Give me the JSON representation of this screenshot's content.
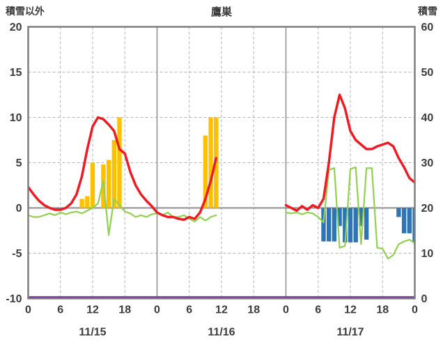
{
  "chart_data": {
    "type": "line",
    "title": "鷹巣",
    "left_axis_title": "積雪以外",
    "right_axis_title": "積雪",
    "left_axis": {
      "min": -10,
      "max": 20,
      "ticks": [
        20,
        15,
        10,
        5,
        0,
        -5,
        -10
      ],
      "gridlines": [
        15,
        10,
        5,
        -5
      ]
    },
    "right_axis": {
      "min": 0,
      "max": 60,
      "ticks": [
        60,
        50,
        40,
        30,
        20,
        10,
        0
      ]
    },
    "x_axis": {
      "hours_total": 72,
      "tick_step": 6,
      "tick_labels": [
        "0",
        "6",
        "12",
        "18",
        "0",
        "6",
        "12",
        "18",
        "0",
        "6",
        "12",
        "18",
        "0"
      ],
      "day_labels": [
        "11/15",
        "11/16",
        "11/17"
      ]
    },
    "grid": {
      "dash_color": "#b3b3b3",
      "solid_color": "#8c8c8c",
      "frame_color": "#7f7f7f",
      "zero_line_color": "#8c8c8c"
    },
    "series": [
      {
        "name": "orange-bars",
        "type": "bar",
        "axis": "left",
        "color": "#ffc000",
        "points": [
          [
            10,
            1
          ],
          [
            11,
            1.3
          ],
          [
            12,
            5
          ],
          [
            14,
            4.8
          ],
          [
            15,
            5.3
          ],
          [
            16,
            7.5
          ],
          [
            17,
            10
          ],
          [
            33,
            8
          ],
          [
            34,
            10
          ],
          [
            35,
            10
          ]
        ]
      },
      {
        "name": "blue-bars",
        "type": "bar",
        "axis": "left",
        "color": "#2e75b6",
        "points": [
          [
            55,
            -3.7
          ],
          [
            56,
            -3.7
          ],
          [
            57,
            -3.7
          ],
          [
            58,
            -2
          ],
          [
            59,
            -3.8
          ],
          [
            60,
            -3.8
          ],
          [
            61,
            -3.8
          ],
          [
            62,
            -2
          ],
          [
            63,
            -3.5
          ],
          [
            69,
            -1
          ],
          [
            70,
            -2.8
          ],
          [
            71,
            -2.8
          ],
          [
            72,
            -3.7
          ]
        ]
      },
      {
        "name": "green-line",
        "type": "line",
        "axis": "left",
        "color": "#92d050",
        "width": 2.2,
        "values": [
          -0.8,
          -1,
          -1,
          -0.8,
          -0.6,
          -0.8,
          -0.5,
          -0.7,
          -0.5,
          -0.4,
          -0.6,
          -0.3,
          0,
          0.5,
          3,
          -3,
          1,
          0.3,
          -0.4,
          -0.6,
          -1,
          -0.8,
          -1,
          -0.7,
          -0.6,
          -0.8,
          -0.5,
          -1,
          -1,
          -0.8,
          -1.2,
          -1.5,
          -1,
          -1.4,
          -1,
          -0.8,
          null,
          null,
          null,
          null,
          null,
          null,
          null,
          null,
          null,
          null,
          null,
          null,
          -0.5,
          -0.6,
          -0.5,
          -0.7,
          -0.5,
          -0.6,
          -1,
          -1.6,
          4.2,
          4.4,
          -4.4,
          -4.2,
          4.3,
          4.5,
          -4,
          4.4,
          4.4,
          -4.4,
          -4.5,
          -5.6,
          -5.2,
          -4,
          -3.7,
          -3.5,
          -3.9
        ]
      },
      {
        "name": "red-line",
        "type": "line",
        "axis": "left",
        "color": "#ed1c24",
        "width": 3.5,
        "values": [
          2.3,
          1.5,
          0.8,
          0.3,
          0,
          -0.2,
          -0.2,
          0,
          0.5,
          1.5,
          3.5,
          6.5,
          9,
          10,
          9.8,
          9.2,
          8.5,
          6.5,
          6,
          4,
          2.5,
          1.5,
          0.8,
          0.2,
          -0.5,
          -0.8,
          -1,
          -1,
          -1.2,
          -1.3,
          -1,
          -1.2,
          -0.5,
          1,
          3,
          5.5,
          null,
          null,
          null,
          null,
          null,
          null,
          null,
          null,
          null,
          null,
          null,
          null,
          0.3,
          0,
          -0.3,
          0.2,
          -0.2,
          0.3,
          0,
          1,
          5,
          10,
          12.5,
          11,
          8.5,
          7.5,
          7,
          6.5,
          6.5,
          6.8,
          7,
          7.2,
          6.8,
          5.5,
          4.5,
          3.3,
          2.8
        ]
      },
      {
        "name": "snow-depth-line",
        "type": "line",
        "axis": "right",
        "color": "#7030a0",
        "width": 2.5,
        "y_offset": -2,
        "points": [
          [
            0,
            0
          ],
          [
            72,
            0
          ]
        ]
      }
    ]
  }
}
